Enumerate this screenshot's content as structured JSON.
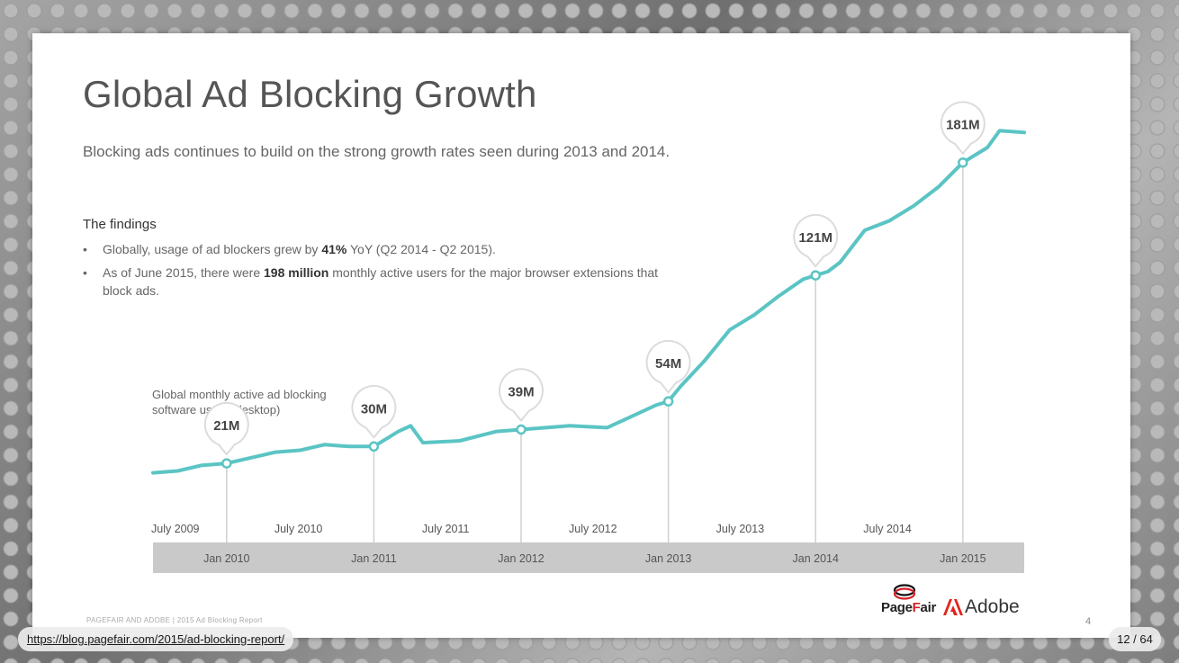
{
  "slide": {
    "title": "Global Ad Blocking Growth",
    "subtitle": "Blocking ads continues to build on the strong growth rates seen during 2013 and 2014.",
    "findings_heading": "The findings",
    "bullets": [
      {
        "pre": "Globally, usage of ad blockers grew by ",
        "bold": "41%",
        "post": " YoY (Q2 2014 - Q2 2015)."
      },
      {
        "pre": "As of June 2015, there were ",
        "bold": "198 million",
        "post": " monthly active users for the major browser extensions that block ads."
      }
    ],
    "footer_left": "PAGEFAIR AND ADOBE | 2015 Ad Blocking Report",
    "page_number": "4",
    "logos": {
      "pagefair_pre": "Page",
      "pagefair_a": "F",
      "pagefair_post": "air",
      "adobe": "Adobe"
    }
  },
  "viewer": {
    "url": "https://blog.pagefair.com/2015/ad-blocking-report/",
    "counter": "12 / 64"
  },
  "chart_data": {
    "type": "line",
    "title": "",
    "series_label": "Global monthly active ad blocking software users (desktop)",
    "unit": "M",
    "line_color": "#5bc4c4",
    "x_start": "2009-07",
    "x_end": "2015-06",
    "ylim": [
      0,
      200
    ],
    "x_labels_top": [
      "July 2009",
      "July 2010",
      "July 2011",
      "July 2012",
      "July 2013",
      "July 2014"
    ],
    "x_labels_bottom": [
      "Jan 2010",
      "Jan 2011",
      "Jan 2012",
      "Jan 2013",
      "Jan 2014",
      "Jan 2015"
    ],
    "points": [
      {
        "x": "2009-07",
        "y": 16
      },
      {
        "x": "2009-09",
        "y": 17
      },
      {
        "x": "2009-11",
        "y": 20
      },
      {
        "x": "2010-01",
        "y": 21
      },
      {
        "x": "2010-03",
        "y": 24
      },
      {
        "x": "2010-05",
        "y": 27
      },
      {
        "x": "2010-07",
        "y": 28
      },
      {
        "x": "2010-09",
        "y": 31
      },
      {
        "x": "2010-11",
        "y": 30
      },
      {
        "x": "2011-01",
        "y": 30
      },
      {
        "x": "2011-03",
        "y": 38
      },
      {
        "x": "2011-04",
        "y": 41
      },
      {
        "x": "2011-05",
        "y": 32
      },
      {
        "x": "2011-08",
        "y": 33
      },
      {
        "x": "2011-11",
        "y": 38
      },
      {
        "x": "2012-01",
        "y": 39
      },
      {
        "x": "2012-03",
        "y": 40
      },
      {
        "x": "2012-05",
        "y": 41
      },
      {
        "x": "2012-08",
        "y": 40
      },
      {
        "x": "2012-10",
        "y": 46
      },
      {
        "x": "2012-12",
        "y": 52
      },
      {
        "x": "2013-01",
        "y": 54
      },
      {
        "x": "2013-02",
        "y": 62
      },
      {
        "x": "2013-04",
        "y": 76
      },
      {
        "x": "2013-06",
        "y": 92
      },
      {
        "x": "2013-08",
        "y": 100
      },
      {
        "x": "2013-10",
        "y": 110
      },
      {
        "x": "2013-12",
        "y": 119
      },
      {
        "x": "2014-01",
        "y": 121
      },
      {
        "x": "2014-02",
        "y": 123
      },
      {
        "x": "2014-03",
        "y": 128
      },
      {
        "x": "2014-05",
        "y": 145
      },
      {
        "x": "2014-07",
        "y": 150
      },
      {
        "x": "2014-09",
        "y": 158
      },
      {
        "x": "2014-11",
        "y": 168
      },
      {
        "x": "2015-01",
        "y": 181
      },
      {
        "x": "2015-03",
        "y": 189
      },
      {
        "x": "2015-04",
        "y": 198
      },
      {
        "x": "2015-06",
        "y": 197
      }
    ],
    "callouts": [
      {
        "x": "2010-01",
        "y": 21,
        "label": "21M"
      },
      {
        "x": "2011-01",
        "y": 30,
        "label": "30M"
      },
      {
        "x": "2012-01",
        "y": 39,
        "label": "39M"
      },
      {
        "x": "2013-01",
        "y": 54,
        "label": "54M"
      },
      {
        "x": "2014-01",
        "y": 121,
        "label": "121M"
      },
      {
        "x": "2015-01",
        "y": 181,
        "label": "181M"
      }
    ]
  }
}
